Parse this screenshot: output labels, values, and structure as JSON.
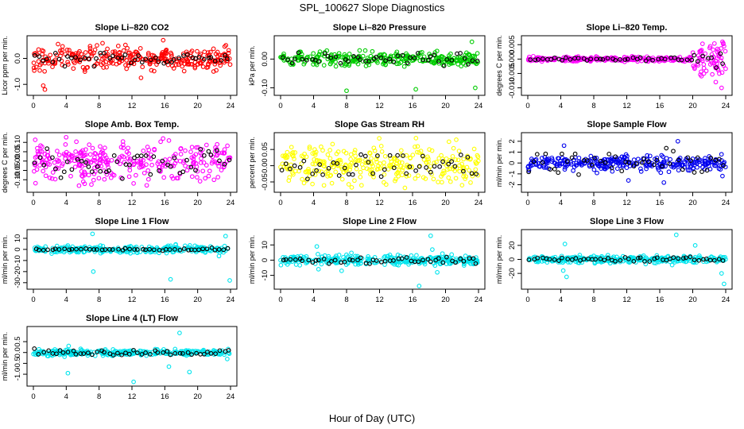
{
  "figure": {
    "title": "SPL_100627  Slope Diagnostics",
    "xlabel": "Hour of Day (UTC)"
  },
  "chart_data": [
    {
      "type": "scatter",
      "title": "Slope Li–820 CO2",
      "ylabel": "Licor ppm per min.",
      "color": "#ff0000",
      "xlim": [
        0,
        24
      ],
      "ylim": [
        -1.3,
        0.75
      ],
      "xticks": [
        0,
        4,
        8,
        12,
        16,
        20,
        24
      ],
      "yticks": [
        -1,
        0
      ],
      "ytick_labels": [
        "-1.0",
        "0.0"
      ],
      "spread": 0.22,
      "black_spread": 0.12,
      "outliers": [
        [
          1.2,
          -1.05
        ],
        [
          1.4,
          -1.2
        ],
        [
          13.1,
          -0.75
        ],
        [
          3.0,
          0.55
        ],
        [
          15.8,
          0.7
        ]
      ]
    },
    {
      "type": "scatter",
      "title": "Slope Li–820 Pressure",
      "ylabel": "kPa per min.",
      "color": "#00cc00",
      "xlim": [
        0,
        24
      ],
      "ylim": [
        -0.115,
        0.07
      ],
      "xticks": [
        0,
        4,
        8,
        12,
        16,
        20,
        24
      ],
      "yticks": [
        -0.1,
        0
      ],
      "ytick_labels": [
        "-0.10",
        "0.00"
      ],
      "spread": 0.012,
      "black_spread": 0.01,
      "outliers": [
        [
          8.0,
          -0.11
        ],
        [
          16.4,
          -0.105
        ],
        [
          23.6,
          -0.1
        ],
        [
          23.2,
          0.06
        ],
        [
          4.4,
          -0.02
        ]
      ]
    },
    {
      "type": "scatter",
      "title": "Slope Li–820 Temp.",
      "ylabel": "degrees C per min.",
      "color": "#ff00ff",
      "xlim": [
        0,
        24
      ],
      "ylim": [
        -0.0115,
        0.007
      ],
      "xticks": [
        0,
        4,
        8,
        12,
        16,
        20,
        24
      ],
      "yticks": [
        -0.01,
        -0.005,
        0,
        0.005
      ],
      "ytick_labels": [
        "-0.010",
        "-0.005",
        "0.000",
        "0.005"
      ],
      "spread": 0.0004,
      "black_spread": 0.0003,
      "tail_start": 20,
      "tail_spread": 0.0035,
      "outliers": [
        [
          23.6,
          0.006
        ],
        [
          23.5,
          -0.01
        ],
        [
          22.8,
          -0.008
        ],
        [
          23.8,
          0.0045
        ]
      ]
    },
    {
      "type": "scatter",
      "title": "Slope Amb. Box Temp.",
      "ylabel": "degrees C per min.",
      "color": "#ff00ff",
      "xlim": [
        0,
        24
      ],
      "ylim": [
        -0.15,
        0.135
      ],
      "xticks": [
        0,
        4,
        8,
        12,
        16,
        20,
        24
      ],
      "yticks": [
        -0.1,
        -0.05,
        0,
        0.05,
        0.1
      ],
      "ytick_labels": [
        "-0.10",
        "-0.05",
        "0.00",
        "0.05",
        "0.10"
      ],
      "spread": 0.05,
      "black_spread": 0.04,
      "outliers": [
        [
          12.2,
          -0.12
        ],
        [
          13.8,
          -0.13
        ],
        [
          16.5,
          0.11
        ],
        [
          2.0,
          -0.09
        ]
      ]
    },
    {
      "type": "scatter",
      "title": "Slope Gas Stream RH",
      "ylabel": "percent per min.",
      "color": "#ffff00",
      "xlim": [
        0,
        24
      ],
      "ylim": [
        -0.072,
        0.092
      ],
      "xticks": [
        0,
        4,
        8,
        12,
        16,
        20,
        24
      ],
      "yticks": [
        -0.05,
        0,
        0.05
      ],
      "ytick_labels": [
        "-0.05",
        "0.00",
        "0.05"
      ],
      "spread": 0.03,
      "black_spread": 0.02,
      "outliers": [
        [
          21.3,
          0.08
        ],
        [
          22.0,
          -0.06
        ]
      ]
    },
    {
      "type": "scatter",
      "title": "Slope Sample Flow",
      "ylabel": "ml/min per min.",
      "color": "#0000ee",
      "xlim": [
        0,
        24
      ],
      "ylim": [
        -2.4,
        2.5
      ],
      "xticks": [
        0,
        4,
        8,
        12,
        16,
        20,
        24
      ],
      "yticks": [
        -2,
        -1,
        0,
        1,
        2
      ],
      "ytick_labels": [
        "-2",
        "-1",
        "0",
        "1",
        "2"
      ],
      "spread": 0.35,
      "black_spread": 0.5,
      "outliers": [
        [
          12.2,
          -1.6
        ],
        [
          16.5,
          -1.8
        ],
        [
          18.2,
          2.0
        ],
        [
          23.6,
          -1.2
        ],
        [
          4.4,
          1.6
        ]
      ]
    },
    {
      "type": "scatter",
      "title": "Slope Line 1 Flow",
      "ylabel": "ml/min per min.",
      "color": "#00e5ee",
      "xlim": [
        0,
        24
      ],
      "ylim": [
        -33,
        15
      ],
      "xticks": [
        0,
        4,
        8,
        12,
        16,
        20,
        24
      ],
      "yticks": [
        -30,
        -20,
        -10,
        0,
        10
      ],
      "ytick_labels": [
        "-30",
        "-20",
        "-10",
        "0",
        "10"
      ],
      "spread": 1.6,
      "black_spread": 0.6,
      "outliers": [
        [
          7.2,
          14
        ],
        [
          7.3,
          -20
        ],
        [
          16.7,
          -27
        ],
        [
          23.4,
          12
        ],
        [
          23.9,
          -28
        ],
        [
          22.6,
          -6
        ]
      ]
    },
    {
      "type": "scatter",
      "title": "Slope Line 2 Flow",
      "ylabel": "ml/min per min.",
      "color": "#00e5ee",
      "xlim": [
        0,
        24
      ],
      "ylim": [
        -17,
        18
      ],
      "xticks": [
        0,
        4,
        8,
        12,
        16,
        20,
        24
      ],
      "yticks": [
        -10,
        0,
        10
      ],
      "ytick_labels": [
        "-10",
        "0",
        "10"
      ],
      "spread": 1.6,
      "black_spread": 1.0,
      "outliers": [
        [
          4.4,
          9
        ],
        [
          18.2,
          16
        ],
        [
          16.8,
          -17
        ],
        [
          4.6,
          -6
        ],
        [
          7.4,
          -7
        ],
        [
          19.0,
          -8
        ],
        [
          18.4,
          7
        ]
      ]
    },
    {
      "type": "scatter",
      "title": "Slope Line 3 Flow",
      "ylabel": "ml/min per min.",
      "color": "#00e5ee",
      "xlim": [
        0,
        24
      ],
      "ylim": [
        -38,
        38
      ],
      "xticks": [
        0,
        4,
        8,
        12,
        16,
        20,
        24
      ],
      "yticks": [
        -20,
        0,
        20
      ],
      "ytick_labels": [
        "-20",
        "0",
        "20"
      ],
      "spread": 2.5,
      "black_spread": 1.5,
      "outliers": [
        [
          4.5,
          22
        ],
        [
          4.7,
          -25
        ],
        [
          4.3,
          -16
        ],
        [
          18.0,
          35
        ],
        [
          23.8,
          -35
        ],
        [
          23.5,
          -20
        ],
        [
          17.5,
          -8
        ],
        [
          20.3,
          20
        ]
      ]
    },
    {
      "type": "scatter",
      "title": "Slope Line 4 (LT) Flow",
      "ylabel": "ml/min per min.",
      "color": "#00e5ee",
      "xlim": [
        0,
        24
      ],
      "ylim": [
        -1.4,
        1.05
      ],
      "xticks": [
        0,
        4,
        8,
        12,
        16,
        20,
        24
      ],
      "yticks": [
        -1,
        -0.5,
        0,
        0.5
      ],
      "ytick_labels": [
        "-1.0",
        "-0.5",
        "0.0",
        "0.5"
      ],
      "spread": 0.07,
      "black_spread": 0.06,
      "outliers": [
        [
          4.2,
          -0.95
        ],
        [
          12.2,
          -1.35
        ],
        [
          16.5,
          -0.65
        ],
        [
          19.0,
          -0.9
        ],
        [
          17.8,
          0.9
        ],
        [
          4.3,
          0.3
        ],
        [
          23.6,
          -0.3
        ]
      ]
    }
  ]
}
